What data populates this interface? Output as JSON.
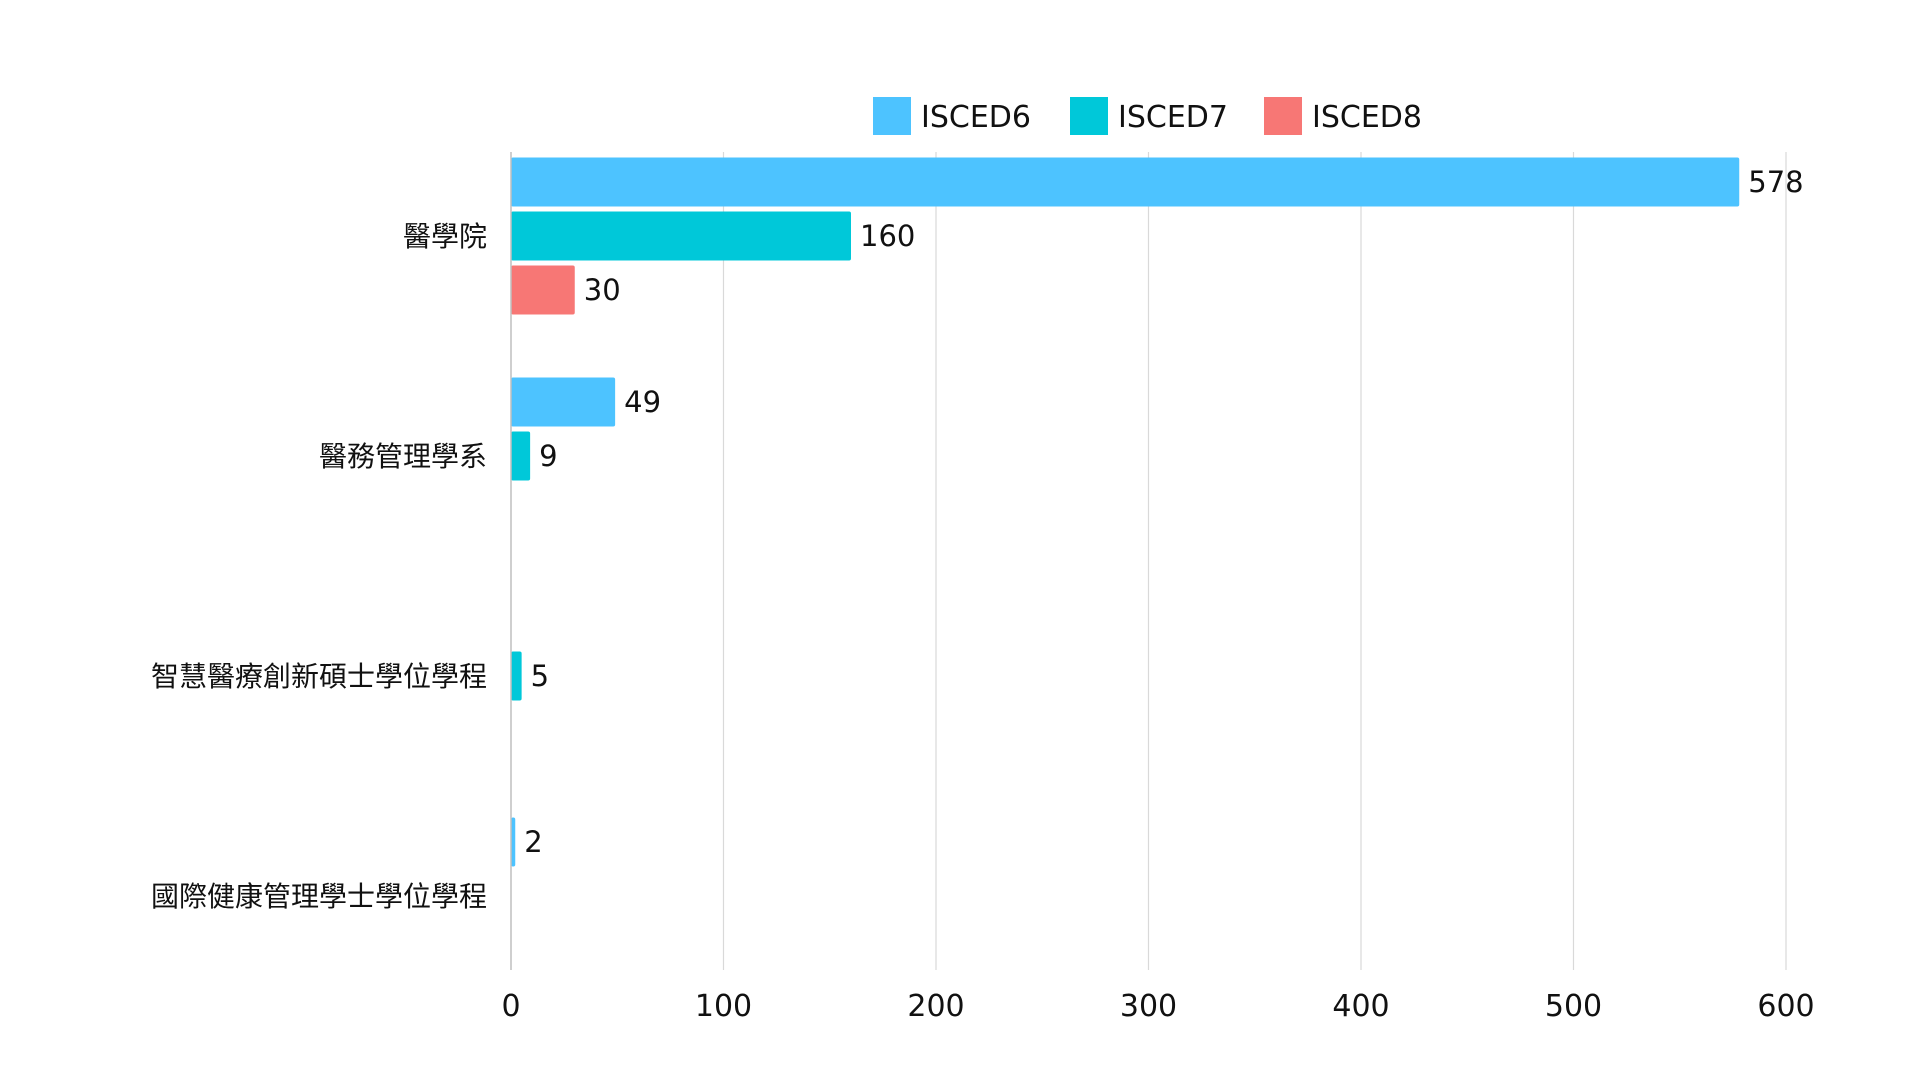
{
  "chart_data": {
    "type": "bar",
    "orientation": "horizontal",
    "categories": [
      "醫學院",
      "醫務管理學系",
      "智慧醫療創新碩士學位學程",
      "國際健康管理學士學位學程"
    ],
    "series": [
      {
        "name": "ISCED6",
        "color": "#4DC3FF",
        "values": [
          578,
          49,
          null,
          2
        ]
      },
      {
        "name": "ISCED7",
        "color": "#00C8D9",
        "values": [
          160,
          9,
          5,
          null
        ]
      },
      {
        "name": "ISCED8",
        "color": "#F77775",
        "values": [
          30,
          null,
          null,
          null
        ]
      }
    ],
    "xlim": [
      0,
      600
    ],
    "xticks": [
      0,
      100,
      200,
      300,
      400,
      500,
      600
    ],
    "grid": true,
    "legend_position": "top",
    "title": "",
    "xlabel": "",
    "ylabel": ""
  }
}
